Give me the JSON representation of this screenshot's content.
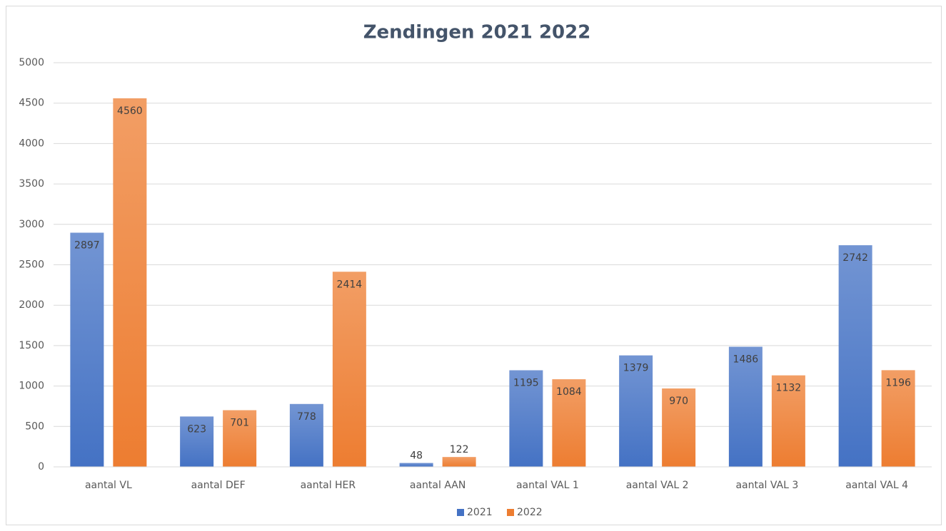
{
  "chart_data": {
    "type": "bar",
    "title": "Zendingen 2021 2022",
    "categories": [
      "aantal VL",
      "aantal DEF",
      "aantal HER",
      "aantal AAN",
      "aantal VAL 1",
      "aantal VAL 2",
      "aantal VAL 3",
      "aantal VAL 4"
    ],
    "series": [
      {
        "name": "2021",
        "color": "#4472c4",
        "values": [
          2897,
          623,
          778,
          48,
          1195,
          1379,
          1486,
          2742
        ]
      },
      {
        "name": "2022",
        "color": "#ed7d31",
        "values": [
          4560,
          701,
          2414,
          122,
          1084,
          970,
          1132,
          1196
        ]
      }
    ],
    "ylim": [
      0,
      5000
    ],
    "yticks": [
      0,
      500,
      1000,
      1500,
      2000,
      2500,
      3000,
      3500,
      4000,
      4500,
      5000
    ],
    "grid": true,
    "legend": "bottom"
  }
}
